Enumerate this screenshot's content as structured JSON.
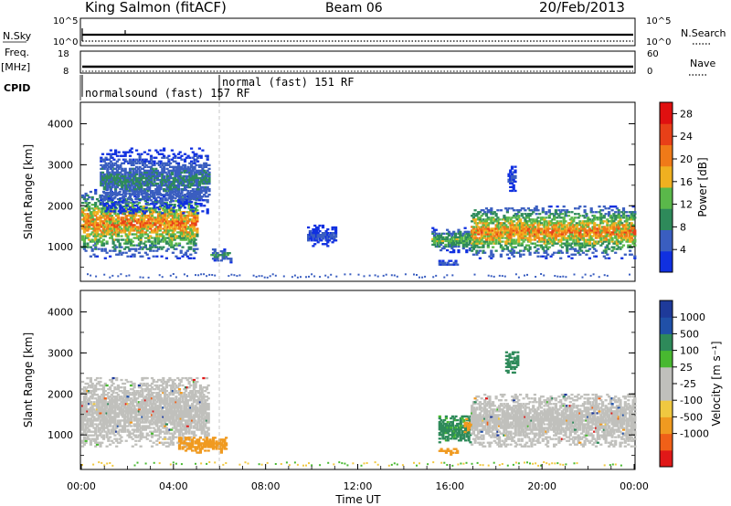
{
  "header": {
    "station": "King Salmon (fitACF)",
    "beam": "Beam 06",
    "date": "20/Feb/2013"
  },
  "panels": {
    "nsky": {
      "left_label": "N.Sky",
      "left_ticks": [
        "10^5",
        "10^0"
      ],
      "right_label": "N.Search",
      "right_ticks": [
        "10^5",
        "10^0"
      ]
    },
    "freq": {
      "left_label_line1": "Freq.",
      "left_label_line2": "[MHz]",
      "left_ticks": [
        "18",
        "8"
      ],
      "right_label": "Nave",
      "right_ticks": [
        "60",
        "0"
      ]
    },
    "cpid": {
      "label": "CPID",
      "modes": [
        "normalsound (fast) 157 RF",
        "normal (fast) 151 RF"
      ]
    }
  },
  "colors": {
    "power_scale": [
      "#1030e0",
      "#3a5ec0",
      "#2e8a5a",
      "#5ab84a",
      "#f0b020",
      "#f07a18",
      "#e84018",
      "#e01010"
    ],
    "velocity_scale": [
      "#e01818",
      "#f06018",
      "#f09a20",
      "#f0c840",
      "#c0c0bc",
      "#c0c0bc",
      "#48b830",
      "#2e8a5a",
      "#2050a8",
      "#1e3a9a"
    ],
    "ground_scatter": "#c0c0bc",
    "frame": "#000000",
    "mode_divider": "#c8c8c8"
  },
  "chart_data": [
    {
      "type": "heatmap",
      "title": "",
      "xlabel": "Time UT",
      "ylabel": "Slant Range [km]",
      "xlim": [
        0,
        24
      ],
      "ylim": [
        180,
        4500
      ],
      "x_ticks": [
        "00:00",
        "04:00",
        "08:00",
        "12:00",
        "16:00",
        "20:00",
        "00:00"
      ],
      "y_ticks": [
        "1000",
        "2000",
        "3000",
        "4000"
      ],
      "colorbar": {
        "label": "Power [dB]",
        "ticks": [
          "4",
          "8",
          "12",
          "16",
          "20",
          "24",
          "28"
        ],
        "range": [
          0,
          30
        ]
      },
      "echo_regions": [
        {
          "t_start": 0.0,
          "t_end": 5.0,
          "range_min": 700,
          "range_max": 2400,
          "peak_power_db": 24
        },
        {
          "t_start": 0.8,
          "t_end": 5.5,
          "range_min": 1800,
          "range_max": 3400,
          "peak_power_db": 10
        },
        {
          "t_start": 5.6,
          "t_end": 6.5,
          "range_min": 600,
          "range_max": 950,
          "peak_power_db": 12
        },
        {
          "t_start": 9.8,
          "t_end": 11.0,
          "range_min": 1000,
          "range_max": 1500,
          "peak_power_db": 6
        },
        {
          "t_start": 15.2,
          "t_end": 16.9,
          "range_min": 850,
          "range_max": 1450,
          "peak_power_db": 16
        },
        {
          "t_start": 15.5,
          "t_end": 16.3,
          "range_min": 500,
          "range_max": 650,
          "peak_power_db": 8
        },
        {
          "t_start": 16.9,
          "t_end": 24.0,
          "range_min": 700,
          "range_max": 2000,
          "peak_power_db": 24
        },
        {
          "t_start": 18.5,
          "t_end": 18.8,
          "range_min": 2300,
          "range_max": 3000,
          "peak_power_db": 6
        }
      ]
    },
    {
      "type": "heatmap",
      "title": "",
      "xlabel": "Time UT",
      "ylabel": "Slant Range [km]",
      "xlim": [
        0,
        24
      ],
      "ylim": [
        180,
        4500
      ],
      "x_ticks": [
        "00:00",
        "04:00",
        "08:00",
        "12:00",
        "16:00",
        "20:00",
        "00:00"
      ],
      "y_ticks": [
        "1000",
        "2000",
        "3000",
        "4000"
      ],
      "colorbar": {
        "label": "Velocity [m s⁻¹]",
        "ticks": [
          "1000",
          "500",
          "100",
          "25",
          "-25",
          "-100",
          "-500",
          "-1000"
        ],
        "range": [
          -1200,
          1200
        ]
      },
      "echo_regions": [
        {
          "t_start": 0.0,
          "t_end": 5.5,
          "range_min": 700,
          "range_max": 2400,
          "velocity": 0,
          "ground_scatter": true
        },
        {
          "t_start": 4.2,
          "t_end": 6.3,
          "range_min": 550,
          "range_max": 950,
          "velocity": -300
        },
        {
          "t_start": 15.5,
          "t_end": 16.9,
          "range_min": 800,
          "range_max": 1450,
          "velocity": 150
        },
        {
          "t_start": 16.6,
          "t_end": 16.9,
          "range_min": 1050,
          "range_max": 1450,
          "velocity": -300
        },
        {
          "t_start": 15.5,
          "t_end": 16.3,
          "range_min": 500,
          "range_max": 650,
          "velocity": -200
        },
        {
          "t_start": 16.9,
          "t_end": 24.0,
          "range_min": 700,
          "range_max": 2000,
          "velocity": 0,
          "ground_scatter": true
        },
        {
          "t_start": 18.4,
          "t_end": 18.9,
          "range_min": 2500,
          "range_max": 3000,
          "velocity": 200
        }
      ]
    }
  ]
}
